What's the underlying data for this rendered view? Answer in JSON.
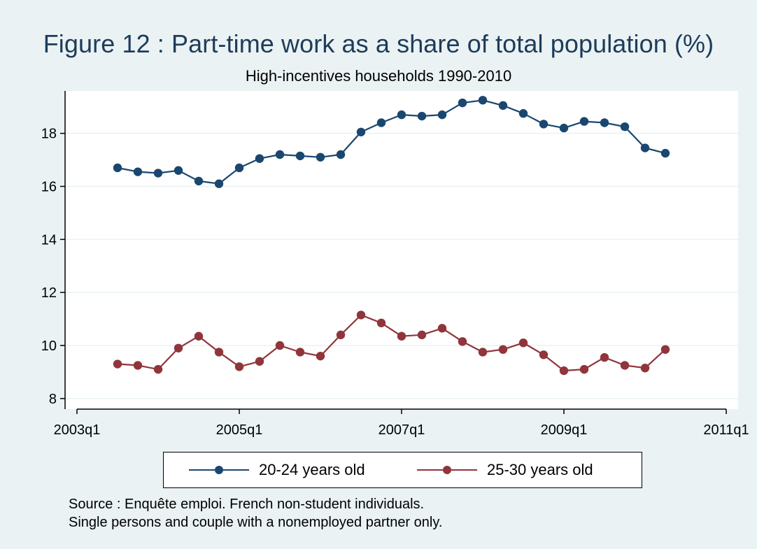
{
  "chart_data": {
    "type": "line",
    "title": "Figure 12 : Part-time work as a share of total population (%)",
    "subtitle": "High-incentives households 1990-2010",
    "xlabel": "",
    "ylabel": "",
    "x_ticks": [
      "2003q1",
      "2005q1",
      "2007q1",
      "2009q1",
      "2011q1"
    ],
    "y_ticks": [
      8,
      10,
      12,
      14,
      16,
      18
    ],
    "xlim": [
      "2003q1",
      "2011q1"
    ],
    "ylim": [
      7.6,
      19.6
    ],
    "grid": true,
    "legend_position": "bottom",
    "x": [
      "2003q3",
      "2003q4",
      "2004q1",
      "2004q2",
      "2004q3",
      "2004q4",
      "2005q1",
      "2005q2",
      "2005q3",
      "2005q4",
      "2006q1",
      "2006q2",
      "2006q3",
      "2006q4",
      "2007q1",
      "2007q2",
      "2007q3",
      "2007q4",
      "2008q1",
      "2008q2",
      "2008q3",
      "2008q4",
      "2009q1",
      "2009q2",
      "2009q3",
      "2009q4",
      "2010q1",
      "2010q2"
    ],
    "series": [
      {
        "name": "20-24 years old",
        "color": "#1a476f",
        "values": [
          16.7,
          16.55,
          16.5,
          16.6,
          16.2,
          16.1,
          16.7,
          17.05,
          17.2,
          17.15,
          17.1,
          17.2,
          18.05,
          18.4,
          18.7,
          18.65,
          18.7,
          19.15,
          19.25,
          19.05,
          18.75,
          18.35,
          18.2,
          18.45,
          18.4,
          18.25,
          17.45,
          17.25
        ]
      },
      {
        "name": "25-30 years old",
        "color": "#90353b",
        "values": [
          9.3,
          9.25,
          9.1,
          9.9,
          10.35,
          9.75,
          9.2,
          9.4,
          10.0,
          9.75,
          9.6,
          10.4,
          11.15,
          10.85,
          10.35,
          10.4,
          10.65,
          10.15,
          9.75,
          9.85,
          10.1,
          9.65,
          9.05,
          9.1,
          9.55,
          9.25,
          9.15,
          9.85
        ]
      }
    ],
    "notes": [
      "Source : Enquête emploi. French non-student individuals.",
      "Single persons and couple with a nonemployed partner only."
    ]
  }
}
